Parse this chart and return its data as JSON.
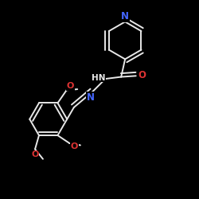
{
  "background_color": "#000000",
  "bond_color": "#e8e8e8",
  "N_color": "#4466ff",
  "O_color": "#dd3333",
  "lw": 1.4,
  "dbo": 0.018,
  "figsize": [
    2.5,
    2.5
  ],
  "dpi": 100,
  "xlim": [
    0.0,
    1.0
  ],
  "ylim": [
    0.0,
    1.0
  ]
}
